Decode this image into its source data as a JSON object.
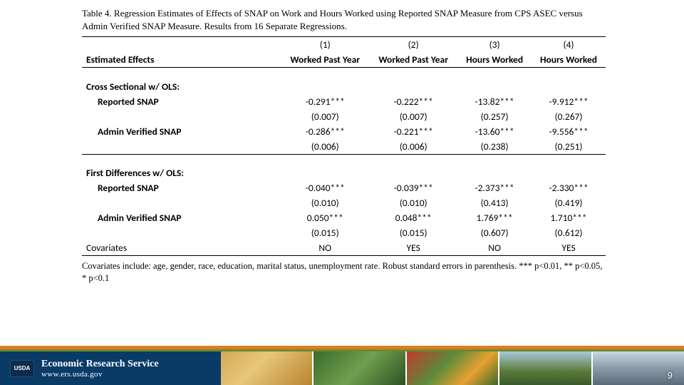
{
  "table": {
    "title": "Table 4.  Regression Estimates of Effects of SNAP on Work and Hours Worked using Reported SNAP Measure from CPS ASEC versus Admin Verified SNAP Measure.  Results from 16 Separate Regressions.",
    "row_header_label": "Estimated Effects",
    "columns": [
      {
        "num": "(1)",
        "label": "Worked Past Year"
      },
      {
        "num": "(2)",
        "label": "Worked Past Year"
      },
      {
        "num": "(3)",
        "label": "Hours Worked"
      },
      {
        "num": "(4)",
        "label": "Hours Worked"
      }
    ],
    "sections": [
      {
        "header": "Cross Sectional w/ OLS:",
        "rows": [
          {
            "label": "Reported SNAP",
            "est": [
              "-0.291***",
              "-0.222***",
              "-13.82***",
              "-9.912***"
            ],
            "se": [
              "(0.007)",
              "(0.007)",
              "(0.257)",
              "(0.267)"
            ]
          },
          {
            "label": "Admin Verified SNAP",
            "est": [
              "-0.286***",
              "-0.221***",
              "-13.60***",
              "-9.556***"
            ],
            "se": [
              "(0.006)",
              "(0.006)",
              "(0.238)",
              "(0.251)"
            ]
          }
        ]
      },
      {
        "header": "First Differences w/ OLS:",
        "rows": [
          {
            "label": "Reported SNAP",
            "est": [
              "-0.040***",
              "-0.039***",
              "-2.373***",
              "-2.330***"
            ],
            "se": [
              "(0.010)",
              "(0.010)",
              "(0.413)",
              "(0.419)"
            ]
          },
          {
            "label": "Admin Verified SNAP",
            "est": [
              "0.050***",
              "0.048***",
              "1.769***",
              "1.710***"
            ],
            "se": [
              "(0.015)",
              "(0.015)",
              "(0.607)",
              "(0.612)"
            ]
          }
        ]
      }
    ],
    "covariates": {
      "label": "Covariates",
      "values": [
        "NO",
        "YES",
        "NO",
        "YES"
      ]
    },
    "footnote": "Covariates include: age, gender, race, education, marital status, unemployment rate.  Robust standard errors in parenthesis. *** p<0.01, ** p<0.05, * p<0.1"
  },
  "footer": {
    "badge": "USDA",
    "org": "Economic Research Service",
    "url": "www.ers.usda.gov",
    "page": "9"
  },
  "colors": {
    "text": "#000000",
    "footer_bg": "#0a3a66",
    "orange": "#e07b1f",
    "green": "#6a8a33",
    "white": "#ffffff"
  }
}
